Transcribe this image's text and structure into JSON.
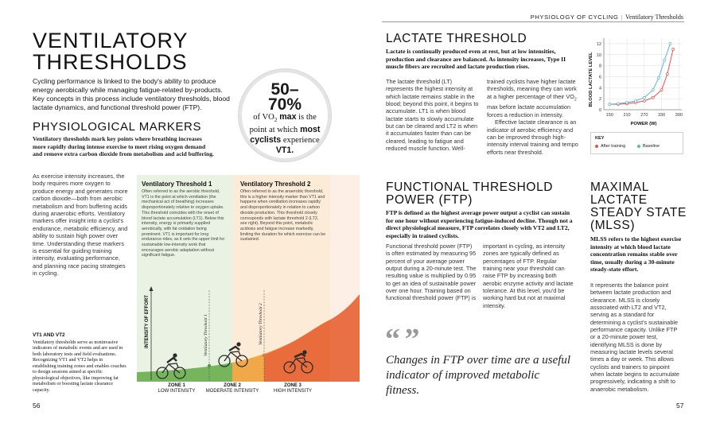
{
  "header": {
    "section": "PHYSIOLOGY OF CYCLING",
    "subsection": "Ventilatory Thresholds"
  },
  "left_page": {
    "title_line1": "VENTILATORY",
    "title_line2": "THRESHOLDS",
    "intro": "Cycling performance is linked to the body's ability to produce energy aerobically while managing fatigue-related by-products. Key concepts in this process include ventilatory thresholds, blood lactate dynamics, and functional threshold power (FTP).",
    "callout": {
      "figure": "50–70%",
      "line1_pre": "of VO",
      "line1_sub": "2",
      "line1_bold": " max",
      "line1_post": " is the",
      "line2": "point at which",
      "line2_bold": " most",
      "line3_bold": "cyclists",
      "line3_post": " experience",
      "line4": "VT1."
    },
    "physiological_markers": {
      "heading": "PHYSIOLOGICAL MARKERS",
      "lead": "Ventilatory thresholds mark key points where breathing increases more rapidly during intense exercise to meet rising oxygen demand and remove extra carbon dioxide from metabolism and acid buffering.",
      "body": "As exercise intensity increases, the body requires more oxygen to produce energy and generates more carbon dioxide—both from aerobic metabolism and from buffering acids during anaerobic efforts. Ventilatory markers offer insight into a cyclist's endurance, metabolic efficiency, and ability to sustain high power over time. Understanding these markers is essential for guiding training intensity, evaluating performance, and planning race pacing strategies in cycling."
    },
    "vt_box": {
      "heading": "VT1 AND VT2",
      "text": "Ventilatory thresholds serve as noninvasive indicators of metabolic events and are used in both laboratory tests and field evaluations. Recognizing VT1 and VT2 helps in establishing training zones and enables coaches to design sessions aimed at specific physiological objectives, like improving fat metabolism or boosting lactate clearance capacity."
    },
    "page_number": "56"
  },
  "zones_figure": {
    "vt1": {
      "title": "Ventilatory Threshold 1",
      "text": "Often referred to as the aerobic threshold, VT1 is the point at which ventilation (the mechanical act of breathing) increases disproportionately relative to oxygen uptake. This threshold coincides with the onset of blood lactate accumulation (LT1). Below this intensity, energy is primarily supplied aerobically, with fat oxidation being prominent. VT1 is important for long endurance rides, as it sets the upper limit for sustainable low-intensity work that encourages aerobic adaptation without significant fatigue.",
      "axis_label": "Ventilatory Threshold 1"
    },
    "vt2": {
      "title": "Ventilatory Threshold 2",
      "text": "Often referred to as the anaerobic threshold, this is a higher intensity marker than VT1 and happens when ventilation increases rapidly and disproportionately in relation to carbon dioxide production. This threshold closely corresponds with lactate threshold 2 (LT2, see right). Beyond this point, metabolic acidosis and fatigue increase markedly, limiting the duration for which exercise can be sustained.",
      "axis_label": "Ventilatory Threshold 2"
    },
    "y_axis": "INTENSITY OF EFFORT",
    "zones": [
      {
        "name": "ZONE 1",
        "label": "LOW INTENSITY"
      },
      {
        "name": "ZONE 2",
        "label": "MODERATE INTENSITY"
      },
      {
        "name": "ZONE 3",
        "label": "HIGH INTENSITY"
      }
    ],
    "colors": {
      "zone1": "#76b55c",
      "zone2": "#f0a848",
      "zone3": "#e8683c"
    }
  },
  "right_page": {
    "lactate": {
      "heading": "LACTATE THRESHOLD",
      "lead": "Lactate is continually produced even at rest, but at low intensities, production and clearance are balanced. As intensity increases, Type II muscle fibers are recruited and lactate production rises.",
      "col1": "The lactate threshold (LT) represents the highest intensity at which lactate remains stable in the blood; beyond this point, it begins to accumulate. LT1 is when blood lactate starts to slowly accumulate but can be cleared and LT2 is when it accumulates faster than can be cleared, leading to fatigue and reduced muscle function. Well-",
      "col2_pre": "trained cyclists have higher lactate thresholds, meaning they can work at a higher percentage of their VO",
      "col2_sub": "2",
      "col2_post": " max before lactate accumulation forces a reduction in intensity.",
      "col2_para2": "Effective lactate clearance is an indicator of aerobic efficiency and can be improved through high-intensity interval training and tempo efforts near threshold."
    },
    "ftp": {
      "heading_line1": "FUNCTIONAL THRESHOLD",
      "heading_line2": "POWER (FTP)",
      "lead": "FTP is defined as the highest average power output a cyclist can sustain for one hour without experiencing fatigue-induced decline. Though not a direct physiological measure, FTP correlates closely with VT2 and LT2, especially in trained cyclists.",
      "col1": "Functional threshold power (FTP) is often estimated by measuring 95 percent of your average power output during a 20-minute test. The resulting value is multiplied by 0.95 to get an idea of sustainable power over one hour. Training based on functional threshold power (FTP) is",
      "col2": "important in cycling, as intensity zones are typically defined as percentages of FTP. Regular training near your threshold can raise FTP by increasing both aerobic enzyme activity and lactate tolerance. At this level, you'd be working hard but not at maximal intensity."
    },
    "quote_marks": "“ ”",
    "quote": "Changes in FTP over time are a useful indicator of improved metabolic fitness.",
    "mlss": {
      "heading_line1": "MAXIMAL",
      "heading_line2": "LACTATE",
      "heading_line3": "STEADY STATE",
      "heading_line4": "(MLSS)",
      "lead": "MLSS refers to the highest exercise intensity at which blood lactate concentration remains stable over time, usually during a 30-minute steady-state effort.",
      "body": "It represents the balance point between lactate production and clearance. MLSS is closely associated with LT2 and VT2, serving as a standard for determining a cyclist's sustainable performance capacity. Unlike FTP or a 20-minute power test, identifying MLSS is done by measuring lactate levels several times a day or week. This allows cyclists and trainers to pinpoint when lactate begins to accumulate progressively, indicating a shift to anaerobic metabolism."
    },
    "page_number": "57"
  },
  "chart_data": {
    "type": "line",
    "xlabel": "POWER (W)",
    "ylabel": "BLOOD LACTATE LEVEL",
    "x_ticks": [
      150,
      210,
      270,
      330,
      390
    ],
    "y_ticks": [
      0,
      2,
      4,
      6,
      8,
      10,
      12
    ],
    "xlim": [
      130,
      400
    ],
    "ylim": [
      0,
      13
    ],
    "grid": true,
    "legend_title": "KEY",
    "series": [
      {
        "name": "After training",
        "color": "#e8504a",
        "x": [
          150,
          180,
          210,
          240,
          270,
          300,
          330,
          350,
          370
        ],
        "y": [
          1.0,
          1.0,
          1.1,
          1.3,
          1.6,
          2.2,
          3.6,
          6.5,
          11.0
        ]
      },
      {
        "name": "Baseline",
        "color": "#5bb5d6",
        "x": [
          150,
          180,
          210,
          240,
          270,
          300,
          320,
          340,
          360
        ],
        "y": [
          1.0,
          1.1,
          1.3,
          1.6,
          2.2,
          3.6,
          5.8,
          9.0,
          12.0
        ]
      }
    ]
  }
}
